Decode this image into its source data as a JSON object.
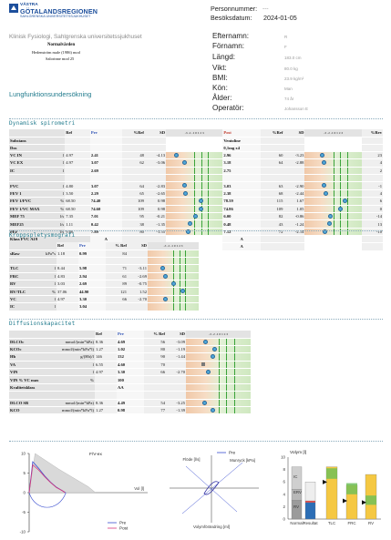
{
  "logo": {
    "line1": "VÄSTRA",
    "line2": "GÖTALANDSREGIONEN",
    "line3": "SAHLGRENSKA UNIVERSITETSSJUKHUSET"
  },
  "header": {
    "hospital": "Klinisk Fysiologi, Sahlgrenska universitetssjukhuset",
    "normal_title": "Normalvärden",
    "normal_line1": "Hedenström male (1986) mod",
    "normal_line2": "Salorinne mod 25",
    "report_title": "Lungfunktionsundersökning",
    "personnummer_label": "Personnummer:",
    "personnummer_value": "---",
    "date_label": "Besöksdatum:",
    "date_value": "2024-01-05"
  },
  "patient": {
    "fields": [
      {
        "label": "Efternamn:",
        "value": "R"
      },
      {
        "label": "Förnamn:",
        "value": "F"
      },
      {
        "label": "Längd:",
        "value": "183.0 cm"
      },
      {
        "label": "Vikt:",
        "value": "80.0 kg"
      },
      {
        "label": "BMI:",
        "value": "23.9 kg/m²"
      },
      {
        "label": "Kön:",
        "value": "Man"
      },
      {
        "label": "Ålder:",
        "value": "74 år"
      },
      {
        "label": "Operatör:",
        "value": "Johansson E"
      }
    ]
  },
  "spirometry": {
    "title": "Dynamisk spirometri",
    "headers": {
      "ref": "Ref",
      "pre": "Pre",
      "pct_ref": "%Ref",
      "sd": "SD",
      "post": "Post",
      "pct_ref2": "%Ref",
      "sd2": "SD",
      "pct_rev": "%Rev"
    },
    "substance_label": "Substans",
    "substance_value": "Ventoline",
    "dose_label": "Dos",
    "dose_value": "0,1mg x4",
    "rows": [
      {
        "label": "VC IN",
        "unit": "l",
        "ref": "4.97",
        "pre": "2.41",
        "pct": "48",
        "sd": "-4.13",
        "post": "2.96",
        "pct2": "60",
        "sd2": "-3.23",
        "rev": "23",
        "pre_pos": 0.18,
        "post_pos": 0.3
      },
      {
        "label": "VC EX",
        "unit": "l",
        "ref": "4.97",
        "pre": "3.07",
        "pct": "62",
        "sd": "-3.06",
        "post": "3.18",
        "pct2": "64",
        "sd2": "-2.88",
        "rev": "4",
        "pre_pos": 0.32,
        "post_pos": 0.34
      },
      {
        "label": "IC",
        "unit": "l",
        "ref": "",
        "pre": "2.69",
        "pct": "",
        "sd": "",
        "post": "2.75",
        "pct2": "",
        "sd2": "",
        "rev": "2",
        "pre_pos": null,
        "post_pos": null
      },
      {
        "label": "",
        "unit": "",
        "ref": "",
        "pre": "",
        "pct": "",
        "sd": "",
        "post": "",
        "pct2": "",
        "sd2": "",
        "rev": "",
        "pre_pos": null,
        "post_pos": null
      },
      {
        "label": "FVC",
        "unit": "l",
        "ref": "4.80",
        "pre": "3.07",
        "pct": "64",
        "sd": "-2.83",
        "post": "3.03",
        "pct2": "63",
        "sd2": "-2.90",
        "rev": "-1",
        "pre_pos": 0.33,
        "post_pos": 0.33
      },
      {
        "label": "FEV 1",
        "unit": "l",
        "ref": "3.50",
        "pre": "2.29",
        "pct": "65",
        "sd": "-2.65",
        "post": "2.38",
        "pct2": "68",
        "sd2": "-2.44",
        "rev": "4",
        "pre_pos": 0.35,
        "post_pos": 0.37
      },
      {
        "label": "FEV 1/FVC",
        "unit": "%",
        "ref": "68.50",
        "pre": "74.40",
        "pct": "109",
        "sd": "0.98",
        "post": "78.59",
        "pct2": "115",
        "sd2": "1.67",
        "rev": "6",
        "pre_pos": 0.62,
        "post_pos": 0.7
      },
      {
        "label": "FEV 1/VC MAX",
        "unit": "%",
        "ref": "68.50",
        "pre": "74.60",
        "pct": "109",
        "sd": "0.98",
        "post": "74.86",
        "pct2": "109",
        "sd2": "1.05",
        "rev": "0",
        "pre_pos": 0.62,
        "post_pos": 0.63
      },
      {
        "label": "MEF 75",
        "unit": "l/s",
        "ref": "7.35",
        "pre": "7.01",
        "pct": "95",
        "sd": "-0.21",
        "post": "6.00",
        "pct2": "82",
        "sd2": "-0.86",
        "rev": "-14",
        "pre_pos": 0.52,
        "post_pos": 0.45
      },
      {
        "label": "MEF25",
        "unit": "l/s",
        "ref": "1.11",
        "pre": "0.42",
        "pct": "38",
        "sd": "-1.35",
        "post": "0.48",
        "pct2": "43",
        "sd2": "-1.24",
        "rev": "13",
        "pre_pos": 0.42,
        "post_pos": 0.43
      },
      {
        "label": "PEF",
        "unit": "l/s",
        "ref": "9.86",
        "pre": "7.89",
        "pct": "80",
        "sd": "-1.55",
        "post": "7.12",
        "pct2": "72",
        "sd2": "-2.14",
        "rev": "-10",
        "pre_pos": 0.4,
        "post_pos": 0.36
      }
    ],
    "klass_rows": [
      {
        "label": "Klass FVC A19",
        "pre": "A",
        "post": "A"
      },
      {
        "label": "Klass FEV1 A19",
        "pre": "A",
        "post": "A"
      }
    ]
  },
  "body_pleth": {
    "title": "Kroppspletysmografi",
    "headers": {
      "ref": "Ref",
      "pre": "Pre",
      "pct_ref": "% Ref",
      "sd": "SD"
    },
    "rows": [
      {
        "label": "sRaw",
        "unit": "kPa*s",
        "ref": "1.18",
        "pre": "0.99",
        "pct": "84",
        "sd": "",
        "pos": null
      },
      {
        "label": "",
        "unit": "",
        "ref": "",
        "pre": "",
        "pct": "",
        "sd": "",
        "pos": null
      },
      {
        "label": "TLC",
        "unit": "l",
        "ref": "8.44",
        "pre": "5.98",
        "pct": "71",
        "sd": "-3.11",
        "pos": 0.3
      },
      {
        "label": "FRC",
        "unit": "l",
        "ref": "4.83",
        "pre": "2.94",
        "pct": "61",
        "sd": "-2.69",
        "pos": 0.34
      },
      {
        "label": "RV",
        "unit": "l",
        "ref": "3.03",
        "pre": "2.69",
        "pct": "89",
        "sd": "-0.75",
        "pos": 0.5
      },
      {
        "label": "RV/TLC",
        "unit": "%",
        "ref": "37.06",
        "pre": "44.90",
        "pct": "121",
        "sd": "1.52",
        "pos": 0.68
      },
      {
        "label": "VC",
        "unit": "l",
        "ref": "4.97",
        "pre": "3.30",
        "pct": "66",
        "sd": "-2.70",
        "pos": 0.34
      },
      {
        "label": "IC",
        "unit": "l",
        "ref": "",
        "pre": "3.04",
        "pct": "",
        "sd": "",
        "pos": null
      }
    ]
  },
  "diffusion": {
    "title": "Diffusionskapacitet",
    "headers": {
      "ref": "Ref",
      "pre": "Pre",
      "pct_ref": "% Ref",
      "sd": "SD"
    },
    "rows": [
      {
        "label": "DLCOc",
        "unit": "mmol/(min*kPa)",
        "ref": "8.36",
        "pre": "4.69",
        "pct": "56",
        "sd": "-3.09",
        "pos": 0.3
      },
      {
        "label": "KCOc",
        "unit": "mmol/(min*kPa*l)",
        "ref": "1.27",
        "pre": "1.02",
        "pct": "80",
        "sd": "-1.19",
        "pos": 0.44
      },
      {
        "label": "Hb",
        "unit": "g/(Hb)/l",
        "ref": "146",
        "pre": "132",
        "pct": "90",
        "sd": "-1.44",
        "pos": 0.42
      },
      {
        "label": "VA",
        "unit": "l",
        "ref": "6.55",
        "pre": "4.60",
        "pct": "70",
        "sd": "",
        "pos": "sq"
      },
      {
        "label": "VIN",
        "unit": "l",
        "ref": "4.97",
        "pre": "3.30",
        "pct": "66",
        "sd": "-2.70",
        "pos": 0.34
      },
      {
        "label": "VIN % VC max",
        "unit": "%",
        "ref": "",
        "pre": "100",
        "pct": "",
        "sd": "",
        "pos": null
      },
      {
        "label": "Kvalitetsklass",
        "unit": "",
        "ref": "",
        "pre": "AA",
        "pct": "",
        "sd": "",
        "pos": null
      },
      {
        "label": "",
        "unit": "",
        "ref": "",
        "pre": "",
        "pct": "",
        "sd": "",
        "pos": null
      },
      {
        "label": "DLCO SB",
        "unit": "mmol/(min*kPa)",
        "ref": "8.36",
        "pre": "4.49",
        "pct": "54",
        "sd": "-3.25",
        "pos": 0.29
      },
      {
        "label": "KCO",
        "unit": "mmol/(min*kPa*l)",
        "ref": "1.27",
        "pre": "0.98",
        "pct": "77",
        "sd": "-1.39",
        "pos": 0.42
      }
    ]
  },
  "chart_data": [
    {
      "type": "line",
      "title": "F/V-ex",
      "xlabel": "Vol [l]",
      "ylabel": "",
      "ylim": [
        -10,
        10
      ],
      "xlim": [
        0,
        10
      ],
      "yticks": [
        "10",
        "5",
        "0",
        "-5",
        "-10"
      ],
      "series": [
        {
          "name": "Pre",
          "color": "#3b4fd0",
          "x": [
            0,
            0.3,
            0.8,
            1.3,
            1.8,
            2.3,
            2.8,
            3.07
          ],
          "y": [
            0,
            7.9,
            6.2,
            4.3,
            2.7,
            1.4,
            0.5,
            0
          ]
        },
        {
          "name": "Post",
          "color": "#d8367a",
          "x": [
            0,
            0.3,
            0.8,
            1.3,
            1.8,
            2.3,
            2.8,
            3.03
          ],
          "y": [
            0,
            7.1,
            5.8,
            4.1,
            2.6,
            1.3,
            0.5,
            0
          ]
        }
      ]
    },
    {
      "type": "line",
      "title": "",
      "xlabel": "Volymförändring [ml]",
      "ylabel": "Flöde [l/s]",
      "y2label": "Munryck [kPa]",
      "series": [
        {
          "name": "Pre",
          "color": "#3b4fd0"
        }
      ]
    },
    {
      "type": "bar",
      "title": "Volym [l]",
      "categories": [
        "Normal",
        "Resultat",
        "TLC",
        "FRC",
        "RV"
      ],
      "annotations": [
        "IC",
        "ERV",
        "RV"
      ],
      "ylim": [
        0,
        10
      ],
      "yticks": [
        "10",
        "8",
        "6",
        "4",
        "2",
        "0"
      ]
    }
  ]
}
